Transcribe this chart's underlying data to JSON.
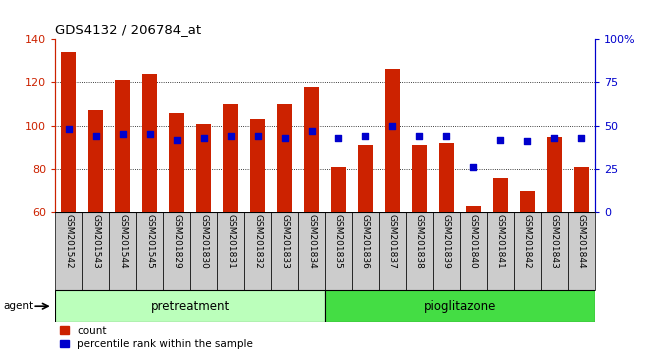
{
  "title": "GDS4132 / 206784_at",
  "samples": [
    "GSM201542",
    "GSM201543",
    "GSM201544",
    "GSM201545",
    "GSM201829",
    "GSM201830",
    "GSM201831",
    "GSM201832",
    "GSM201833",
    "GSM201834",
    "GSM201835",
    "GSM201836",
    "GSM201837",
    "GSM201838",
    "GSM201839",
    "GSM201840",
    "GSM201841",
    "GSM201842",
    "GSM201843",
    "GSM201844"
  ],
  "counts": [
    134,
    107,
    121,
    124,
    106,
    101,
    110,
    103,
    110,
    118,
    81,
    91,
    126,
    91,
    92,
    63,
    76,
    70,
    95,
    81
  ],
  "percentile_ranks": [
    48,
    44,
    45,
    45,
    42,
    43,
    44,
    44,
    43,
    47,
    43,
    44,
    50,
    44,
    44,
    26,
    42,
    41,
    43,
    43
  ],
  "ylim_left": [
    60,
    140
  ],
  "ylim_right": [
    0,
    100
  ],
  "yticks_left": [
    60,
    80,
    100,
    120,
    140
  ],
  "yticks_right": [
    0,
    25,
    50,
    75,
    100
  ],
  "yticklabels_right": [
    "0",
    "25",
    "50",
    "75",
    "100%"
  ],
  "bar_color": "#cc2200",
  "dot_color": "#0000cc",
  "bar_bottom": 60,
  "n_pre": 10,
  "n_pio": 10,
  "pretreatment_color": "#bbffbb",
  "pioglitazone_color": "#44dd44",
  "agent_label": "agent",
  "pretreatment_label": "pretreatment",
  "pioglitazone_label": "pioglitazone",
  "count_label": "count",
  "percentile_label": "percentile rank within the sample",
  "grid_color": "#000000",
  "tick_label_size": 6.5,
  "bar_width": 0.55,
  "bg_color": "#cccccc",
  "fig_bg": "#ffffff",
  "plot_bg": "#ffffff",
  "spine_color": "#000000",
  "left_tick_color": "#cc2200",
  "right_tick_color": "#0000cc"
}
